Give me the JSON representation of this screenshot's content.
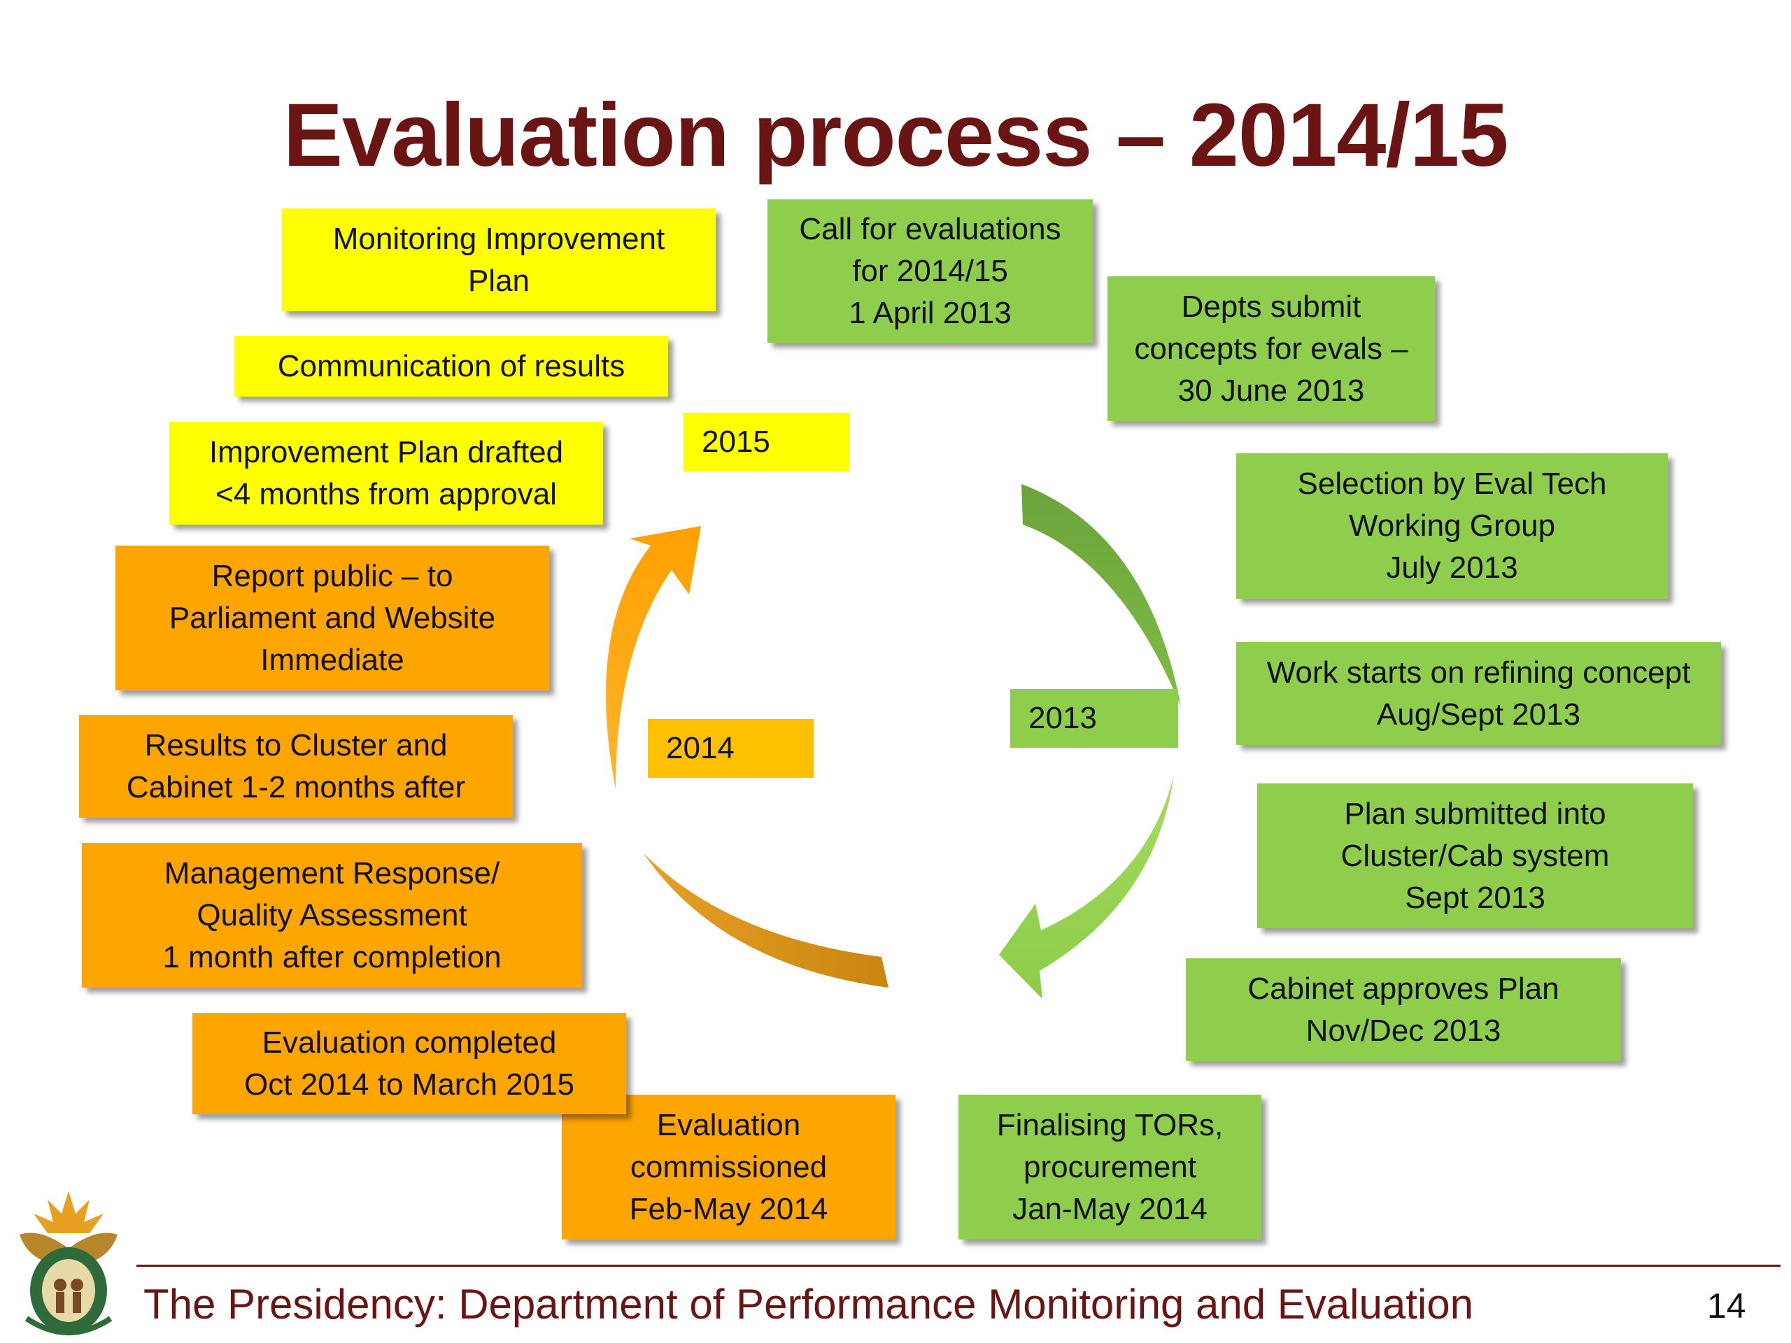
{
  "title": "Evaluation process – 2014/15",
  "years": {
    "y2015": "2015",
    "y2014": "2014",
    "y2013": "2013"
  },
  "steps_green": [
    {
      "lines": [
        "Call for evaluations",
        "for 2014/15",
        "1 April 2013"
      ]
    },
    {
      "lines": [
        "Depts submit",
        "concepts for evals –",
        "30 June 2013"
      ]
    },
    {
      "lines": [
        "Selection by Eval Tech",
        "Working Group",
        "July 2013"
      ]
    },
    {
      "lines": [
        "Work starts on refining concept",
        "Aug/Sept 2013"
      ]
    },
    {
      "lines": [
        "Plan submitted into",
        "Cluster/Cab system",
        "Sept 2013"
      ]
    },
    {
      "lines": [
        "Cabinet approves Plan",
        "Nov/Dec 2013"
      ]
    },
    {
      "lines": [
        "Finalising TORs,",
        "procurement",
        "Jan-May 2014"
      ]
    }
  ],
  "steps_orange": [
    {
      "lines": [
        "Evaluation",
        "commissioned",
        "Feb-May 2014"
      ]
    },
    {
      "lines": [
        "Evaluation completed",
        "Oct 2014 to March 2015"
      ]
    },
    {
      "lines": [
        "Management Response/",
        "Quality Assessment",
        "1 month after completion"
      ]
    },
    {
      "lines": [
        "Results to Cluster and",
        "Cabinet 1-2 months after"
      ]
    },
    {
      "lines": [
        "Report public – to",
        "Parliament and Website",
        "Immediate"
      ]
    }
  ],
  "steps_yellow": [
    {
      "lines": [
        "Improvement Plan drafted",
        "<4 months from approval"
      ]
    },
    {
      "lines": [
        "Communication of results"
      ]
    },
    {
      "lines": [
        "Monitoring Improvement",
        "Plan"
      ]
    }
  ],
  "footer": "The Presidency: Department of Performance Monitoring and Evaluation",
  "page_number": "14",
  "colors": {
    "title": "#6b1414",
    "green": "#8ece4c",
    "yellow": "#ffff00",
    "orange": "#ffa500",
    "year_2014": "#ffc000",
    "arrow_dark_green": "#6aa33c",
    "arrow_light_green": "#92d050",
    "arrow_orange": "#ffad1f",
    "arrow_brown_orange": "#d88f12"
  }
}
